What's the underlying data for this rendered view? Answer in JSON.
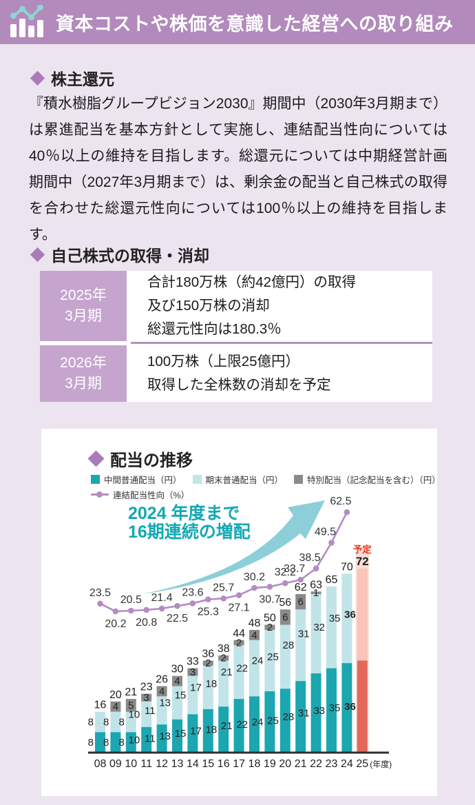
{
  "page": {
    "bg": "#ece4ef"
  },
  "header": {
    "title": "資本コストや株価を意識した経営への取り組み",
    "bg": "#b28abc",
    "icon": "bar-chart-with-line-icon"
  },
  "sections": {
    "shareholder": {
      "heading": "株主還元",
      "body": "『積水樹脂グループビジョン2030』期間中（2030年3月期まで）は累進配当を基本方針として実施し、連結配当性向については40％以上の維持を目指します。総還元については中期経営計画期間中（2027年3月期まで）は、剰余金の配当と自己株式の取得を合わせた総還元性向については100％以上の維持を目指します。"
    },
    "buyback": {
      "heading": "自己株式の取得・消却",
      "rows": [
        {
          "period_line1": "2025年",
          "period_line2": "3月期",
          "details": [
            "合計180万株（約42億円）の取得",
            "及び150万株の消却",
            "総還元性向は180.3％"
          ]
        },
        {
          "period_line1": "2026年",
          "period_line2": "3月期",
          "details": [
            "100万株（上限25億円）",
            "取得した全株数の消却を予定"
          ]
        }
      ]
    },
    "dividend": {
      "heading": "配当の推移",
      "legend": [
        "中間普通配当（円）",
        "期末普通配当（円）",
        "特別配当（記念配当を含む）（円）",
        "連結配当性向（%）"
      ],
      "annotation_line1": "2024 年度まで",
      "annotation_line2": "16期連続の増配"
    }
  },
  "chart_data": {
    "type": "bar",
    "subtype": "stacked-bar-with-line",
    "title": "配当の推移",
    "categories": [
      "08",
      "09",
      "10",
      "11",
      "12",
      "13",
      "14",
      "15",
      "16",
      "17",
      "18",
      "19",
      "20",
      "21",
      "22",
      "23",
      "24",
      "25"
    ],
    "x_axis_suffix": "(年度)",
    "series": [
      {
        "name": "中間普通配当（円）",
        "type": "bar",
        "values": [
          8,
          8,
          8,
          10,
          11,
          13,
          15,
          17,
          18,
          21,
          22,
          24,
          25,
          28,
          31,
          33,
          35,
          36
        ]
      },
      {
        "name": "期末普通配当（円）",
        "type": "bar",
        "values": [
          8,
          8,
          8,
          10,
          11,
          13,
          15,
          17,
          18,
          21,
          22,
          24,
          25,
          28,
          31,
          32,
          35,
          36
        ]
      },
      {
        "name": "特別配当（記念配当を含む）（円）",
        "type": "bar",
        "values": [
          0,
          4,
          5,
          3,
          4,
          4,
          3,
          2,
          2,
          2,
          4,
          2,
          6,
          6,
          1,
          0,
          0,
          0
        ]
      },
      {
        "name": "連結配当性向（%）",
        "type": "line",
        "values": [
          23.5,
          20.2,
          20.5,
          20.8,
          21.4,
          22.5,
          23.6,
          25.3,
          25.7,
          27.1,
          30.2,
          30.7,
          32.2,
          33.7,
          38.5,
          49.5,
          62.5,
          null
        ]
      }
    ],
    "totals": [
      16,
      20,
      21,
      23,
      26,
      30,
      33,
      36,
      38,
      44,
      48,
      50,
      56,
      62,
      63,
      65,
      70,
      72
    ],
    "line_label_side": [
      "above",
      "below",
      "above",
      "below",
      "above",
      "below",
      "above",
      "below",
      "above",
      "below",
      "above",
      "below",
      "above",
      "above",
      "above",
      "above",
      "above"
    ],
    "forecast": {
      "index": 17,
      "label": "予定"
    },
    "legend_position": "top-left",
    "grid": false,
    "colors": {
      "interim": "#1ca6b0",
      "yearend": "#c1e4e8",
      "special": "#8a8a8a",
      "payout_line": "#b48cc2",
      "forecast_interim": "#e2685a",
      "forecast_yearend": "#f9c4ba",
      "forecast_bg": "#fbdcd6",
      "forecast_label": "#e8391d",
      "arrow": "#8ccfd8",
      "annotation": "#13a8b4"
    }
  }
}
